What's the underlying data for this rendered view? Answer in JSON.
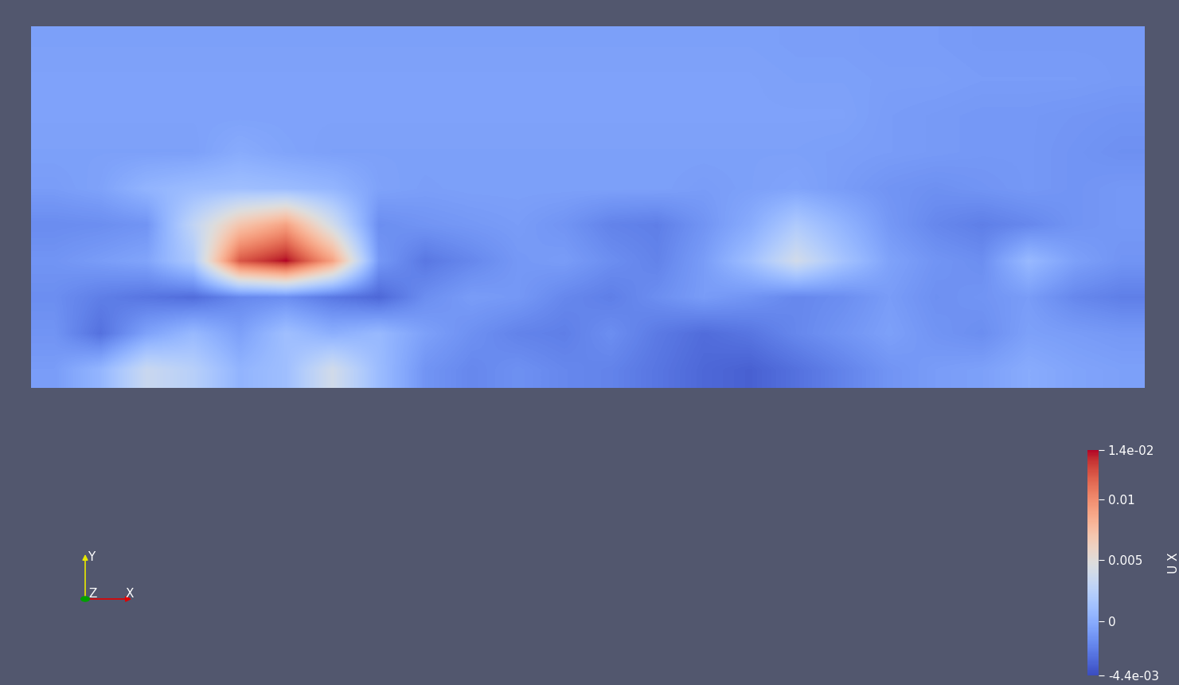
{
  "chart_data": {
    "type": "heatmap",
    "cells": [
      [
        -0.0006,
        -0.0006,
        -0.0006,
        -0.0006,
        -0.0006,
        -0.0006,
        -0.0006,
        -0.0006,
        -0.0006,
        -0.0006,
        -0.0006,
        -0.0006,
        -0.0006,
        -0.0006,
        -0.0006,
        -0.0006,
        -0.0007,
        -0.0007,
        -0.0008,
        -0.0008,
        -0.0009,
        -0.0009,
        -0.0009,
        -0.0009
      ],
      [
        -0.0005,
        -0.0005,
        -0.0005,
        -0.0005,
        -0.0005,
        -0.0005,
        -0.0005,
        -0.0005,
        -0.0005,
        -0.0005,
        -0.0005,
        -0.0005,
        -0.0005,
        -0.0005,
        -0.0005,
        -0.0005,
        -0.0006,
        -0.0006,
        -0.0007,
        -0.0007,
        -0.0008,
        -0.0008,
        -0.0008,
        -0.0009
      ],
      [
        -0.0005,
        -0.0005,
        -0.0005,
        -0.0005,
        -0.0005,
        -0.0005,
        -0.0005,
        -0.0005,
        -0.0005,
        -0.0005,
        -0.0005,
        -0.0005,
        -0.0005,
        -0.0005,
        -0.0005,
        -0.0005,
        -0.0005,
        -0.0005,
        -0.0008,
        -0.0009,
        -0.001,
        -0.001,
        -0.0011,
        -0.0012
      ],
      [
        -0.0006,
        -0.0006,
        -0.0006,
        -0.0006,
        0.0,
        -0.0004,
        -0.0006,
        -0.0006,
        -0.0006,
        -0.0006,
        -0.0006,
        -0.0006,
        -0.0006,
        -0.0006,
        -0.0006,
        -0.0006,
        -0.0006,
        -0.0007,
        -0.0008,
        -0.0009,
        -0.001,
        -0.001,
        -0.0012,
        -0.0014
      ],
      [
        -0.0008,
        -0.0005,
        0.0005,
        0.001,
        0.0012,
        0.001,
        0.0006,
        -0.0005,
        -0.0007,
        -0.0006,
        -0.0006,
        -0.0006,
        -0.0006,
        -0.0006,
        -0.0008,
        -0.0006,
        -0.0004,
        -0.0008,
        -0.0012,
        -0.0014,
        -0.0012,
        -0.001,
        -0.0012,
        -0.001
      ],
      [
        -0.0016,
        -0.0015,
        -0.0012,
        0.003,
        0.007,
        0.009,
        0.004,
        -0.0015,
        -0.0012,
        -0.001,
        -0.0008,
        -0.0012,
        -0.002,
        -0.0022,
        -0.0012,
        0.0,
        0.002,
        0.0005,
        -0.001,
        -0.0018,
        -0.0022,
        -0.0018,
        -0.0012,
        -0.001
      ],
      [
        -0.0012,
        -0.0008,
        -0.0004,
        0.002,
        0.012,
        0.014,
        0.009,
        -0.001,
        -0.0025,
        -0.0018,
        -0.001,
        -0.0008,
        -0.0015,
        -0.002,
        -0.0008,
        0.0012,
        0.004,
        0.0015,
        -0.0005,
        -0.0012,
        -0.0015,
        0.0008,
        -0.0006,
        -0.0012
      ],
      [
        -0.0015,
        -0.0022,
        -0.0026,
        -0.003,
        -0.0018,
        -0.0015,
        -0.0025,
        -0.0032,
        -0.0015,
        -0.0008,
        -0.001,
        -0.0018,
        -0.0022,
        -0.0015,
        -0.0008,
        -0.0012,
        -0.0018,
        -0.0015,
        -0.0008,
        -0.0014,
        -0.0012,
        -0.0008,
        -0.0018,
        -0.0022
      ],
      [
        -0.0012,
        -0.0028,
        -0.0005,
        0.0008,
        -0.0006,
        0.0012,
        0.0002,
        0.0008,
        -0.0006,
        -0.0014,
        -0.002,
        -0.0022,
        -0.0015,
        -0.0024,
        -0.003,
        -0.0026,
        -0.0018,
        -0.0012,
        -0.0006,
        -0.0012,
        -0.0015,
        -0.0006,
        -0.0008,
        -0.001
      ],
      [
        -0.0008,
        0.0006,
        0.0035,
        0.0025,
        0.0005,
        0.0012,
        0.004,
        0.001,
        -0.0012,
        -0.0018,
        -0.0014,
        -0.0018,
        -0.002,
        -0.0026,
        -0.0032,
        -0.0035,
        -0.0028,
        -0.002,
        -0.0012,
        -0.0008,
        -0.0006,
        0.0,
        -0.0004,
        -0.0006
      ]
    ],
    "colorbar": {
      "label": "U X",
      "range": [
        -0.0044,
        0.014
      ],
      "ticks": [
        {
          "value": -0.0044,
          "label": "-4.4e-03"
        },
        0,
        0.005,
        0.01,
        {
          "value": 0.014,
          "label": "1.4e-02"
        }
      ]
    },
    "tick_labels": false,
    "axes_triad": {
      "x": "X",
      "y": "Y",
      "z": "Z"
    }
  }
}
